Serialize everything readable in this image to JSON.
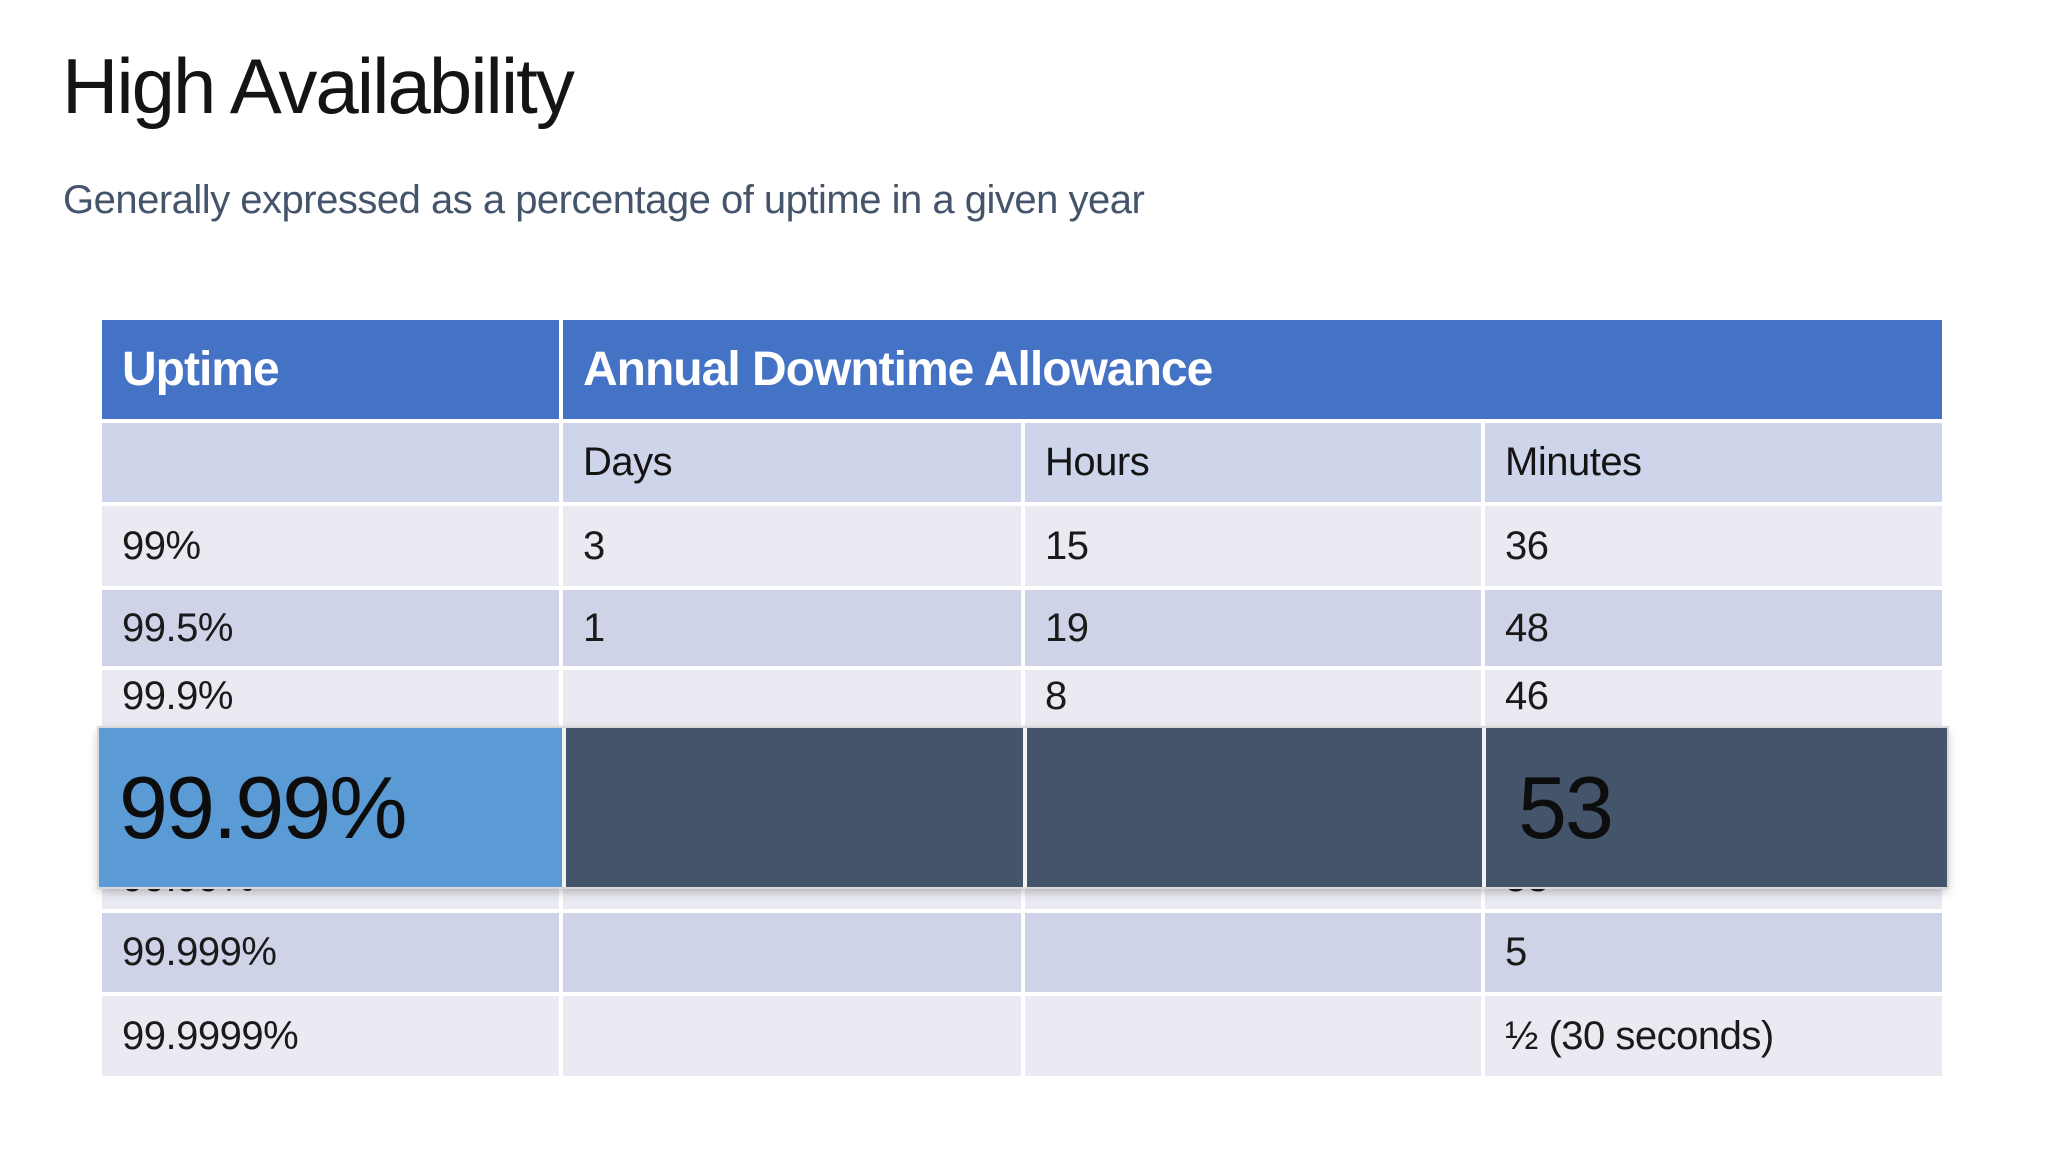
{
  "slide": {
    "title": "High Availability",
    "subtitle": "Generally expressed as a percentage of uptime in a given year"
  },
  "table": {
    "header": {
      "uptime_label": "Uptime",
      "allowance_label": "Annual Downtime Allowance"
    },
    "columns": {
      "days": "Days",
      "hours": "Hours",
      "minutes": "Minutes"
    },
    "rows": [
      {
        "uptime": "99%",
        "days": "3",
        "hours": "15",
        "minutes": "36"
      },
      {
        "uptime": "99.5%",
        "days": "1",
        "hours": "19",
        "minutes": "48"
      },
      {
        "uptime": "99.9%",
        "days": "",
        "hours": "8",
        "minutes": "46"
      },
      {
        "uptime": "99.99%",
        "days": "",
        "hours": "",
        "minutes": "53"
      },
      {
        "uptime": "99.999%",
        "days": "",
        "hours": "",
        "minutes": "5"
      },
      {
        "uptime": "99.9999%",
        "days": "",
        "hours": "",
        "minutes": "½ (30 seconds)"
      }
    ],
    "callout": {
      "uptime": "99.99%",
      "days": "",
      "hours": "",
      "minutes": "53"
    }
  },
  "colors": {
    "header_blue": "#4472C4",
    "callout_highlight_blue": "#5B9BD5",
    "callout_dark_slate": "#44546A",
    "band_light": "#E9EAF2",
    "band_dark": "#CED3E8",
    "subheader_lavender": "#CED5EA",
    "subtitle_slate": "#44546A",
    "title_black": "#141414"
  }
}
